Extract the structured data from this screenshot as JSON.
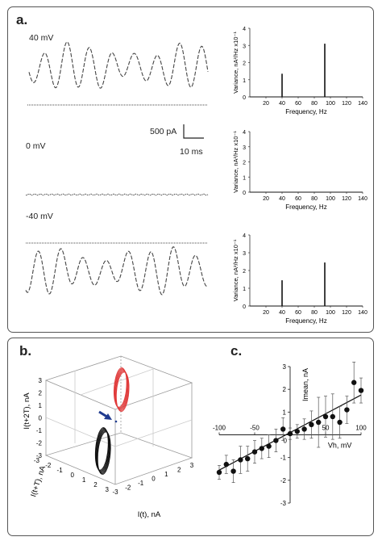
{
  "panel_a": {
    "label": "a.",
    "traces": [
      {
        "voltage": "40 mV"
      },
      {
        "voltage": "0 mV"
      },
      {
        "voltage": "-40 mV"
      }
    ],
    "scalebar": {
      "current": "500 pA",
      "time": "10 ms"
    }
  },
  "panel_b": {
    "label": "b.",
    "z_axis_label": "I(t+2T), nA",
    "y_axis_label": "I(t+T), nA",
    "x_axis_label": "I(t), nA",
    "z_ticks": [
      "3",
      "2",
      "1",
      "0",
      "-1",
      "-2",
      "-3"
    ],
    "y_ticks": [
      "-3",
      "-2",
      "-1",
      "0",
      "1",
      "2",
      "3"
    ],
    "x_ticks": [
      "-3",
      "-2",
      "-1",
      "0",
      "1",
      "2",
      "3"
    ],
    "colors": {
      "loop_40mV": "#e03a3a",
      "loop_minus40mV": "#111111",
      "arrow": "#1f3a8f"
    }
  },
  "panel_c": {
    "label": "c."
  },
  "chart_data": [
    {
      "type": "line",
      "panel": "a-spectrum-1",
      "xlabel": "Frequency, Hz",
      "ylabel": "Variance, nA²/Hz x10⁻¹",
      "xlim": [
        0,
        140
      ],
      "ylim": [
        0,
        4
      ],
      "xticks": [
        20,
        40,
        60,
        80,
        100,
        120,
        140
      ],
      "yticks": [
        0,
        1,
        2,
        3,
        4
      ],
      "peaks": [
        {
          "x": 40,
          "y": 1.35
        },
        {
          "x": 93,
          "y": 3.1
        }
      ]
    },
    {
      "type": "line",
      "panel": "a-spectrum-2",
      "xlabel": "Frequency, Hz",
      "ylabel": "Variance, nA²/Hz x10⁻¹",
      "xlim": [
        0,
        140
      ],
      "ylim": [
        0,
        4
      ],
      "xticks": [
        20,
        40,
        60,
        80,
        100,
        120,
        140
      ],
      "yticks": [
        0,
        1,
        2,
        3,
        4
      ],
      "peaks": []
    },
    {
      "type": "line",
      "panel": "a-spectrum-3",
      "xlabel": "Frequency, Hz",
      "ylabel": "Variance, nA²/Hz x10⁻¹",
      "xlim": [
        0,
        140
      ],
      "ylim": [
        0,
        4
      ],
      "xticks": [
        20,
        40,
        60,
        80,
        100,
        120,
        140
      ],
      "yticks": [
        0,
        1,
        2,
        3,
        4
      ],
      "peaks": [
        {
          "x": 40,
          "y": 1.45
        },
        {
          "x": 93,
          "y": 2.45
        }
      ]
    },
    {
      "type": "scatter",
      "panel": "c",
      "xlabel": "Vh, mV",
      "ylabel": "Imean, nA",
      "xlim": [
        -100,
        100
      ],
      "ylim": [
        -3,
        3
      ],
      "xticks": [
        -100,
        -50,
        0,
        50,
        100
      ],
      "yticks": [
        -3,
        -2,
        -1,
        0,
        1,
        2,
        3
      ],
      "x": [
        -100,
        -90,
        -80,
        -70,
        -60,
        -50,
        -40,
        -30,
        -20,
        -10,
        0,
        10,
        20,
        30,
        40,
        50,
        60,
        70,
        80,
        90,
        100
      ],
      "y": [
        -1.65,
        -1.3,
        -1.6,
        -1.1,
        -1.05,
        -0.75,
        -0.6,
        -0.5,
        -0.25,
        0.25,
        0.05,
        0.15,
        0.25,
        0.45,
        0.55,
        0.8,
        0.8,
        0.55,
        1.1,
        2.3,
        1.95
      ],
      "yerr": [
        0.3,
        0.4,
        0.5,
        0.6,
        0.55,
        0.5,
        0.45,
        0.5,
        0.5,
        0.5,
        0.25,
        0.3,
        0.45,
        0.6,
        1.1,
        0.9,
        1.0,
        0.7,
        0.6,
        0.9,
        0.55
      ],
      "fit_line": {
        "x": [
          -100,
          100
        ],
        "y": [
          -1.55,
          1.75
        ]
      }
    }
  ]
}
